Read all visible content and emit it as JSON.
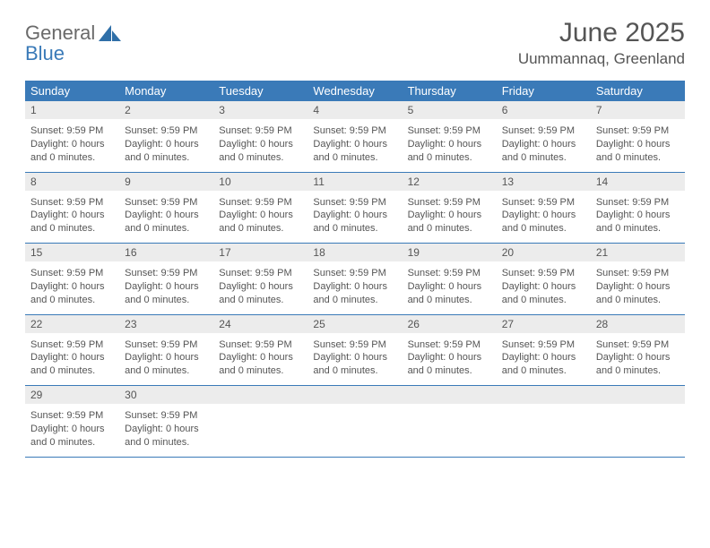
{
  "brand": {
    "word1": "General",
    "word2": "Blue"
  },
  "title": "June 2025",
  "location": "Uummannaq, Greenland",
  "colors": {
    "header_bg": "#3a7ab8",
    "header_text": "#ffffff",
    "daynum_bg": "#ececec",
    "rule": "#3a7ab8",
    "body_text": "#555555"
  },
  "weekdays": [
    "Sunday",
    "Monday",
    "Tuesday",
    "Wednesday",
    "Thursday",
    "Friday",
    "Saturday"
  ],
  "cell_text": {
    "sunset": "Sunset: 9:59 PM",
    "daylight": "Daylight: 0 hours and 0 minutes."
  },
  "weeks": [
    [
      1,
      2,
      3,
      4,
      5,
      6,
      7
    ],
    [
      8,
      9,
      10,
      11,
      12,
      13,
      14
    ],
    [
      15,
      16,
      17,
      18,
      19,
      20,
      21
    ],
    [
      22,
      23,
      24,
      25,
      26,
      27,
      28
    ],
    [
      29,
      30,
      null,
      null,
      null,
      null,
      null
    ]
  ]
}
